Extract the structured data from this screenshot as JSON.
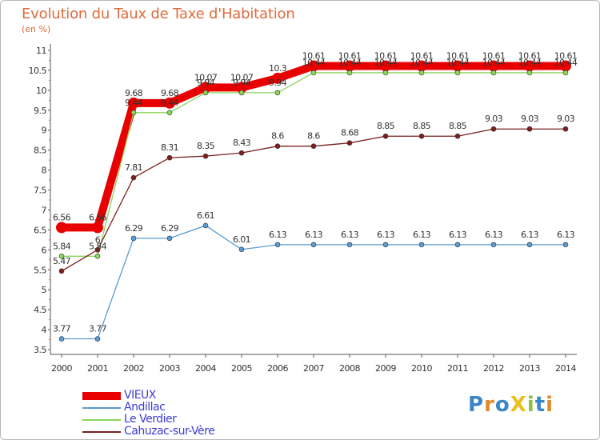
{
  "title": "Evolution du Taux de Taxe d'Habitation",
  "subtitle": "(en %)",
  "logo": "ProXiti",
  "chart_data": {
    "type": "line",
    "title": "Evolution du Taux de Taxe d'Habitation",
    "ylabel": "(en %)",
    "xlabel": "",
    "ylim": [
      3.5,
      11
    ],
    "yticks": [
      3.5,
      4,
      4.5,
      5,
      5.5,
      6,
      6.5,
      7,
      7.5,
      8,
      8.5,
      9,
      9.5,
      10,
      10.5,
      11
    ],
    "ytick_labels": [
      "3.5",
      "4",
      "4.5",
      "5",
      "5.5",
      "6",
      "6.5",
      "7",
      "7.5",
      "8",
      "8.5",
      "9",
      "9.5",
      "10",
      "10.5",
      "11"
    ],
    "categories": [
      "2000",
      "2001",
      "2002",
      "2003",
      "2004",
      "2005",
      "2006",
      "2007",
      "2008",
      "2009",
      "2010",
      "2011",
      "2012",
      "2013",
      "2014"
    ],
    "grid": false,
    "legend_position": "bottom-left",
    "series": [
      {
        "name": "VIEUX",
        "color": "#e80000",
        "values": [
          6.56,
          6.56,
          9.68,
          9.68,
          10.07,
          10.07,
          10.3,
          10.61,
          10.61,
          10.61,
          10.61,
          10.61,
          10.61,
          10.61,
          10.61
        ],
        "labels": [
          "6.56",
          "6.56",
          "9.68",
          "9.68",
          "10.07",
          "10.07",
          "10.3",
          "10.61",
          "10.61",
          "10.61",
          "10.61",
          "10.61",
          "10.61",
          "10.61",
          "10.61"
        ]
      },
      {
        "name": "Andillac",
        "color": "#5b9bd0",
        "values": [
          3.77,
          3.77,
          6.29,
          6.29,
          6.61,
          6.01,
          6.13,
          6.13,
          6.13,
          6.13,
          6.13,
          6.13,
          6.13,
          6.13,
          6.13
        ],
        "labels": [
          "3.77",
          "3.77",
          "6.29",
          "6.29",
          "6.61",
          "6.01",
          "6.13",
          "6.13",
          "6.13",
          "6.13",
          "6.13",
          "6.13",
          "6.13",
          "6.13",
          "6.13"
        ]
      },
      {
        "name": "Le Verdier",
        "color": "#8cd45c",
        "values": [
          5.84,
          5.84,
          9.44,
          9.44,
          9.94,
          9.94,
          9.94,
          10.44,
          10.44,
          10.44,
          10.44,
          10.44,
          10.44,
          10.44,
          10.44
        ],
        "labels": [
          "5.84",
          "5.84",
          "9.44",
          "9.44",
          "9.94",
          "9.94",
          "9.94",
          "10.44",
          "10.44",
          "10.44",
          "10.44",
          "10.44",
          "10.44",
          "10.44",
          "10.44"
        ]
      },
      {
        "name": "Cahuzac-sur-Vère",
        "color": "#7a2020",
        "values": [
          5.47,
          6.0,
          7.81,
          8.31,
          8.35,
          8.43,
          8.6,
          8.6,
          8.68,
          8.85,
          8.85,
          8.85,
          9.03,
          9.03,
          9.03
        ],
        "labels": [
          "5.47",
          "6",
          "7.81",
          "8.31",
          "8.35",
          "8.43",
          "8.6",
          "8.6",
          "8.68",
          "8.85",
          "8.85",
          "8.85",
          "9.03",
          "9.03",
          "9.03"
        ]
      }
    ]
  }
}
